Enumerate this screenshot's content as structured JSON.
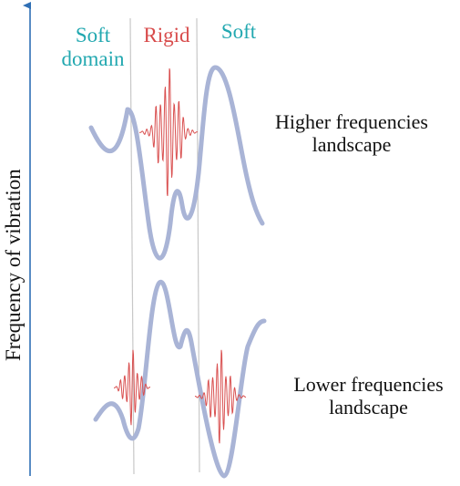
{
  "axis": {
    "label": "Frequency of vibration",
    "color": "#2f6fb5"
  },
  "domains": {
    "soft_left": "Soft\ndomain",
    "rigid": "Rigid",
    "soft_right": "Soft",
    "soft_color": "#22a8b0",
    "rigid_color": "#d84b4b"
  },
  "landscapes": {
    "higher": "Higher frequencies\nlandscape",
    "lower": "Lower frequencies\nlandscape"
  },
  "colors": {
    "landscape_curve": "#a9b4d6",
    "vibration": "#d95050",
    "divider": "#c8c8c8"
  }
}
